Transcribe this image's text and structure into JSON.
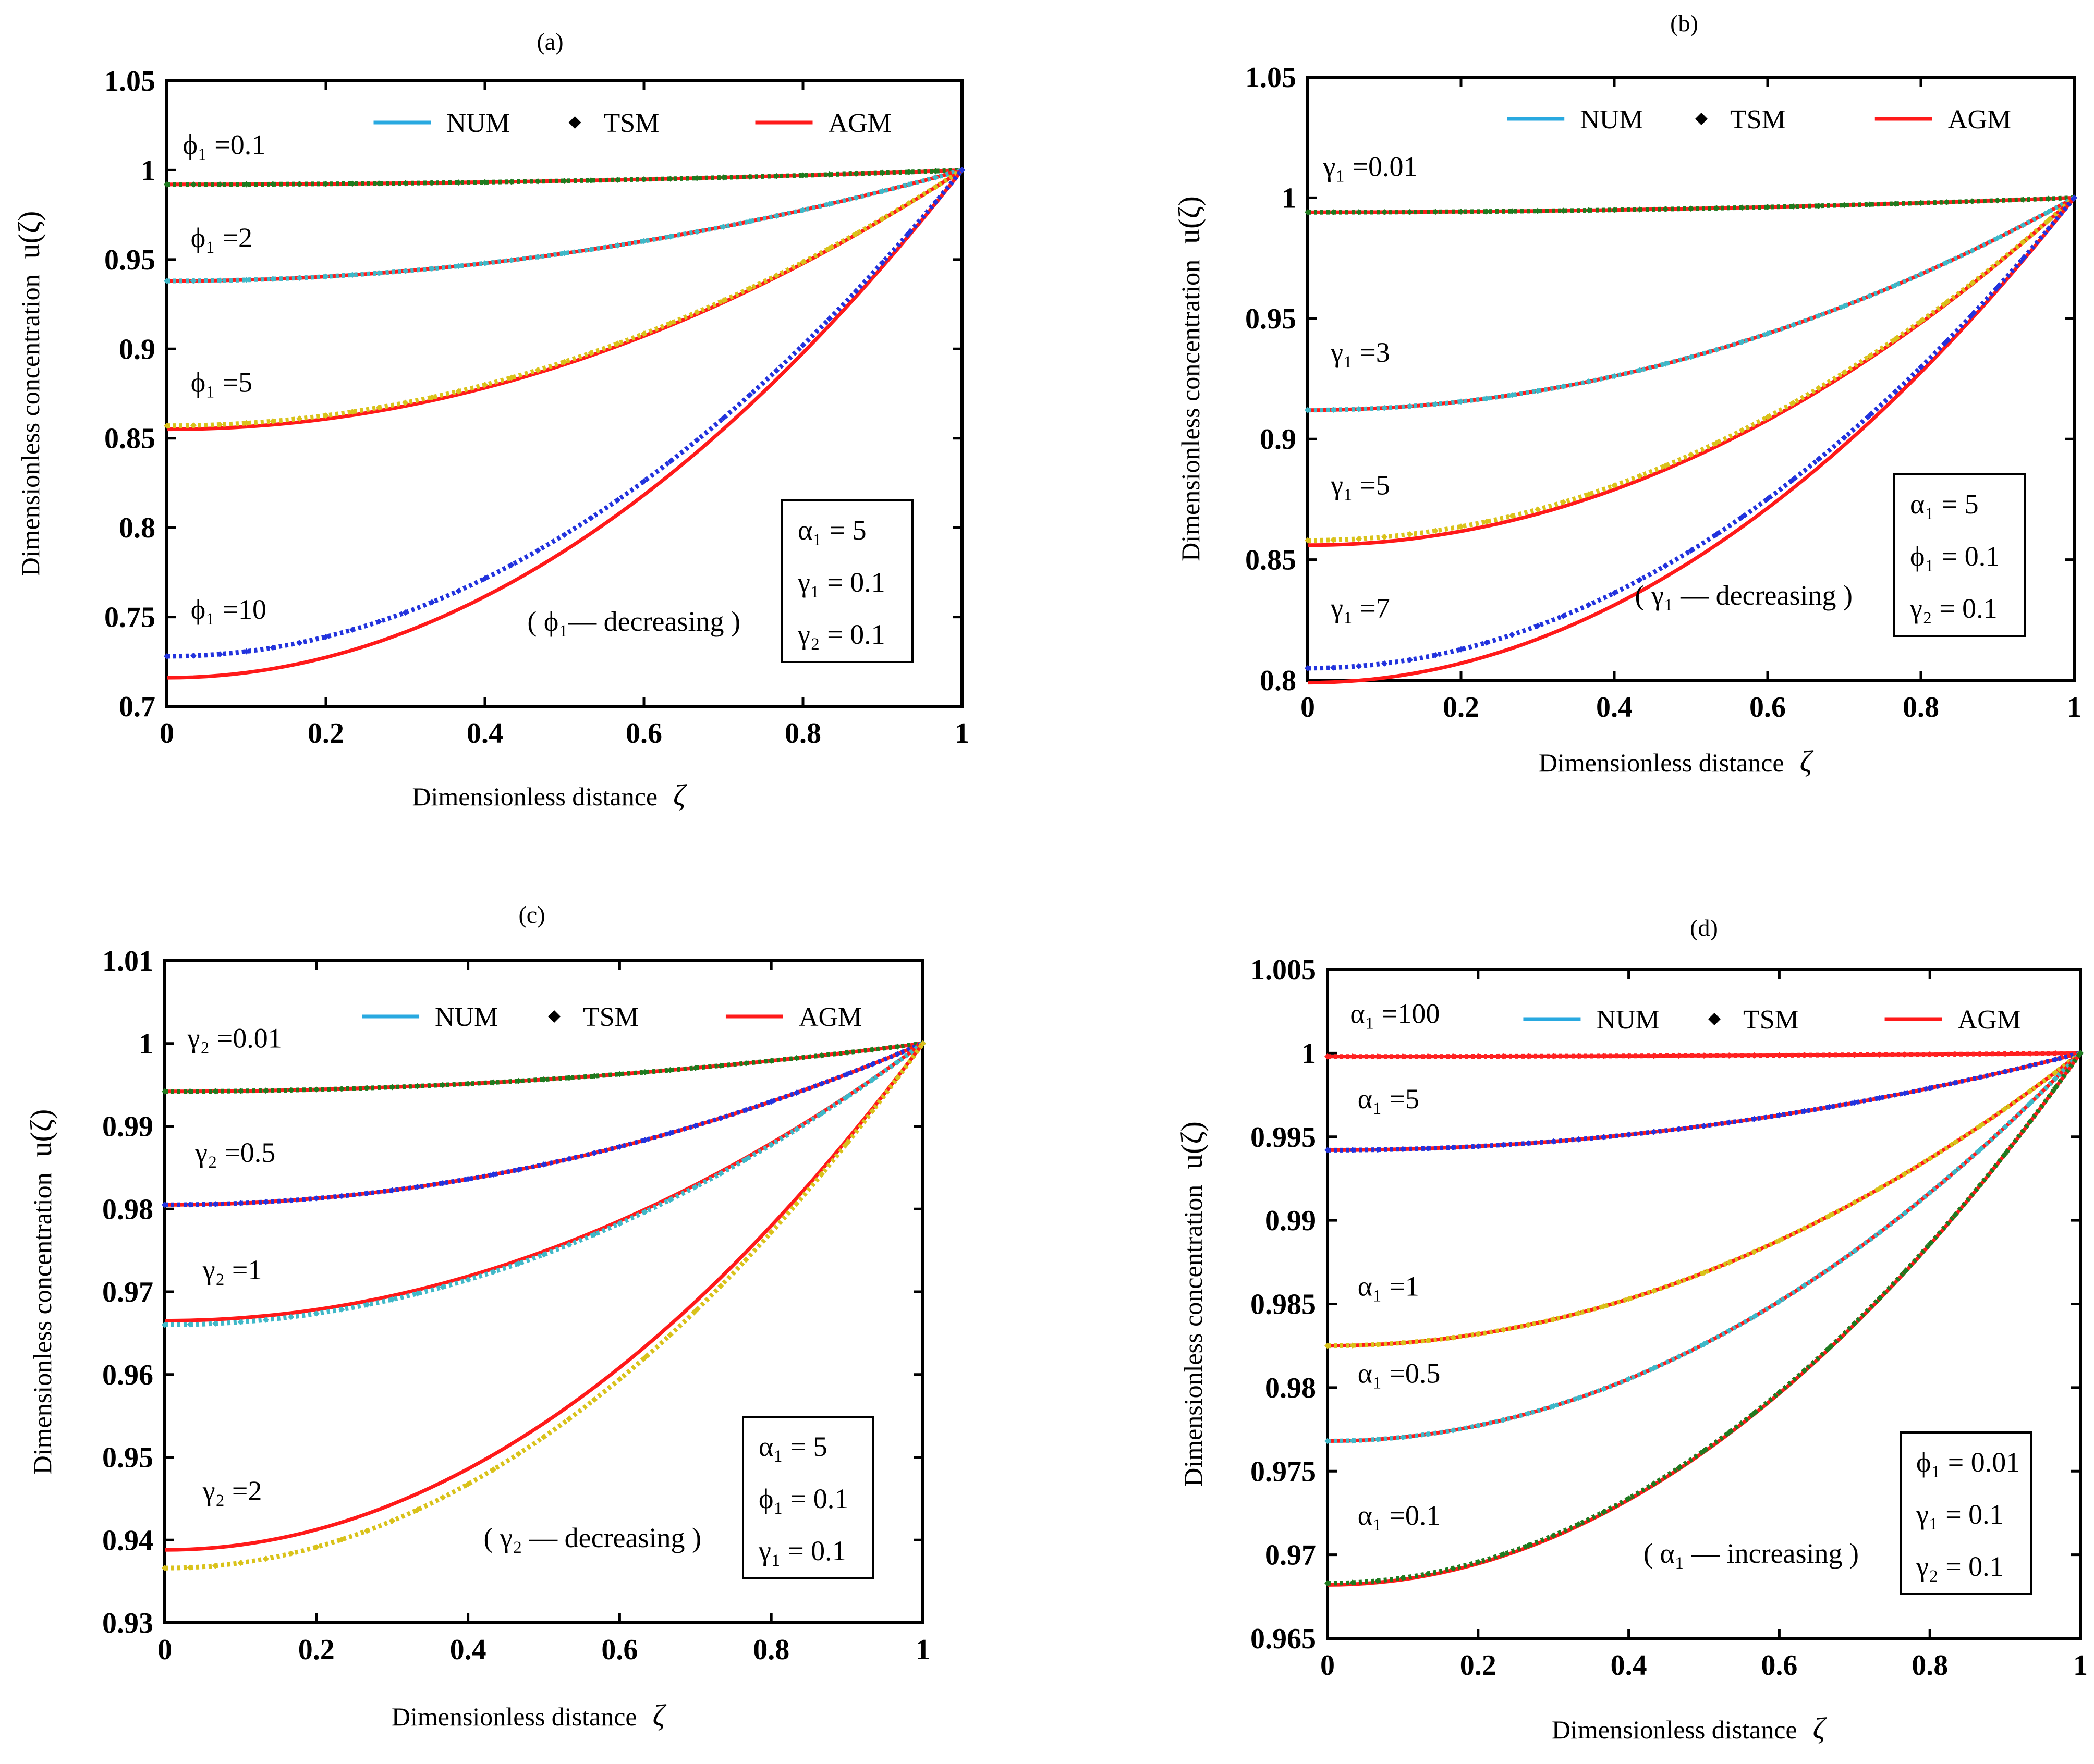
{
  "chart_data": [
    {
      "type": "line",
      "panel_label": "(a)",
      "xlabel": "Dimensionless distance",
      "xlabel_symbol": "ζ",
      "ylabel": "Dimensionless concentration",
      "ylabel_symbol": "u(ζ)",
      "xlim": [
        0,
        1
      ],
      "ylim": [
        0.7,
        1.05
      ],
      "xticks": [
        "0",
        "0.2",
        "0.4",
        "0.6",
        "0.8",
        "1"
      ],
      "yticks": [
        "0.7",
        "0.75",
        "0.8",
        "0.85",
        "0.9",
        "0.95",
        "1",
        "1.05"
      ],
      "legend": {
        "position": "top",
        "entries": [
          "NUM",
          "TSM",
          "AGM"
        ]
      },
      "params": [
        "α₁ = 5",
        "γ₁ = 0.1",
        "γ₂ = 0.1"
      ],
      "trend_note": "( ϕ₁— decreasing )",
      "series": [
        {
          "name": "ϕ₁ = 0.1",
          "label": "ϕ₁ =0.1",
          "u0_num": 0.992,
          "u0_agm": 0.992,
          "num_color": "#1f7a1f",
          "label_x": 0.02,
          "label_y": 1.009
        },
        {
          "name": "ϕ₁ = 2",
          "label": "ϕ₁ =2",
          "u0_num": 0.938,
          "u0_agm": 0.938,
          "num_color": "#3fb8c8",
          "label_x": 0.03,
          "label_y": 0.957
        },
        {
          "name": "ϕ₁ = 5",
          "label": "ϕ₁ =5",
          "u0_num": 0.857,
          "u0_agm": 0.855,
          "num_color": "#d9c21a",
          "label_x": 0.03,
          "label_y": 0.876
        },
        {
          "name": "ϕ₁ = 10",
          "label": "ϕ₁ =10",
          "u0_num": 0.728,
          "u0_agm": 0.716,
          "num_color": "#2233dd",
          "label_x": 0.03,
          "label_y": 0.749
        }
      ]
    },
    {
      "type": "line",
      "panel_label": "(b)",
      "xlabel": "Dimensionless distance",
      "xlabel_symbol": "ζ",
      "ylabel": "Dimensionless concentration",
      "ylabel_symbol": "u(ζ)",
      "xlim": [
        0,
        1
      ],
      "ylim": [
        0.8,
        1.05
      ],
      "xticks": [
        "0",
        "0.2",
        "0.4",
        "0.6",
        "0.8",
        "1"
      ],
      "yticks": [
        "0.8",
        "0.85",
        "0.9",
        "0.95",
        "1",
        "1.05"
      ],
      "legend": {
        "position": "top",
        "entries": [
          "NUM",
          "TSM",
          "AGM"
        ]
      },
      "params": [
        "α₁ = 5",
        "ϕ₁ = 0.1",
        "γ₂ = 0.1"
      ],
      "trend_note": "( γ₁ — decreasing )",
      "series": [
        {
          "name": "γ₁ = 0.01",
          "label": "γ₁ =0.01",
          "u0_num": 0.994,
          "u0_agm": 0.994,
          "num_color": "#1f7a1f",
          "label_x": 0.02,
          "label_y": 1.009
        },
        {
          "name": "γ₁ = 3",
          "label": "γ₁ =3",
          "u0_num": 0.912,
          "u0_agm": 0.912,
          "num_color": "#3fb8c8",
          "label_x": 0.03,
          "label_y": 0.932
        },
        {
          "name": "γ₁ = 5",
          "label": "γ₁ =5",
          "u0_num": 0.858,
          "u0_agm": 0.856,
          "num_color": "#d9c21a",
          "label_x": 0.03,
          "label_y": 0.877
        },
        {
          "name": "γ₁ = 7",
          "label": "γ₁ =7",
          "u0_num": 0.805,
          "u0_agm": 0.799,
          "num_color": "#2233dd",
          "label_x": 0.03,
          "label_y": 0.826
        }
      ]
    },
    {
      "type": "line",
      "panel_label": "(c)",
      "xlabel": "Dimensionless distance",
      "xlabel_symbol": "ζ",
      "ylabel": "Dimensionless concentration",
      "ylabel_symbol": "u(ζ)",
      "xlim": [
        0,
        1
      ],
      "ylim": [
        0.93,
        1.01
      ],
      "xticks": [
        "0",
        "0.2",
        "0.4",
        "0.6",
        "0.8",
        "1"
      ],
      "yticks": [
        "0.93",
        "0.94",
        "0.95",
        "0.96",
        "0.97",
        "0.98",
        "0.99",
        "1",
        "1.01"
      ],
      "legend": {
        "position": "top",
        "entries": [
          "NUM",
          "TSM",
          "AGM"
        ]
      },
      "params": [
        "α₁ = 5",
        "ϕ₁ = 0.1",
        "γ₁ = 0.1"
      ],
      "trend_note": "( γ₂ — decreasing )",
      "series": [
        {
          "name": "γ₂ = 0.01",
          "label": "γ₂ =0.01",
          "u0_num": 0.9942,
          "u0_agm": 0.9942,
          "num_color": "#1f7a1f",
          "label_x": 0.03,
          "label_y": 0.9995
        },
        {
          "name": "γ₂ = 0.5",
          "label": "γ₂ =0.5",
          "u0_num": 0.9805,
          "u0_agm": 0.9805,
          "num_color": "#2233dd",
          "label_x": 0.04,
          "label_y": 0.9857
        },
        {
          "name": "γ₂ = 1",
          "label": "γ₂ =1",
          "u0_num": 0.966,
          "u0_agm": 0.9665,
          "num_color": "#3fb8c8",
          "label_x": 0.05,
          "label_y": 0.9715
        },
        {
          "name": "γ₂ = 2",
          "label": "γ₂ =2",
          "u0_num": 0.9366,
          "u0_agm": 0.9388,
          "num_color": "#d9c21a",
          "label_x": 0.05,
          "label_y": 0.9448
        }
      ]
    },
    {
      "type": "line",
      "panel_label": "(d)",
      "xlabel": "Dimensionless distance",
      "xlabel_symbol": "ζ",
      "ylabel": "Dimensionless concentration",
      "ylabel_symbol": "u(ζ)",
      "xlim": [
        0,
        1
      ],
      "ylim": [
        0.965,
        1.005
      ],
      "xticks": [
        "0",
        "0.2",
        "0.4",
        "0.6",
        "0.8",
        "1"
      ],
      "yticks": [
        "0.965",
        "0.97",
        "0.975",
        "0.98",
        "0.985",
        "0.99",
        "0.995",
        "1",
        "1.005"
      ],
      "legend": {
        "position": "top",
        "entries": [
          "NUM",
          "TSM",
          "AGM"
        ]
      },
      "params": [
        "ϕ₁ = 0.01",
        "γ₁ = 0.1",
        "γ₂ = 0.1"
      ],
      "trend_note": "( α₁ — increasing )",
      "series": [
        {
          "name": "α₁ = 100",
          "label": "α₁ =100",
          "u0_num": 0.9998,
          "u0_agm": 0.9998,
          "num_color": "#ff2222",
          "label_x": 0.03,
          "label_y": 1.0018
        },
        {
          "name": "α₁ = 5",
          "label": "α₁ =5",
          "u0_num": 0.9942,
          "u0_agm": 0.9942,
          "num_color": "#2233dd",
          "label_x": 0.04,
          "label_y": 0.9967
        },
        {
          "name": "α₁ = 1",
          "label": "α₁ =1",
          "u0_num": 0.9825,
          "u0_agm": 0.9825,
          "num_color": "#d9c21a",
          "label_x": 0.04,
          "label_y": 0.9855
        },
        {
          "name": "α₁ = 0.5",
          "label": "α₁ =0.5",
          "u0_num": 0.9768,
          "u0_agm": 0.9768,
          "num_color": "#3fb8c8",
          "label_x": 0.04,
          "label_y": 0.9803
        },
        {
          "name": "α₁ = 0.1",
          "label": "α₁ =0.1",
          "u0_num": 0.9683,
          "u0_agm": 0.9682,
          "num_color": "#1f7a1f",
          "label_x": 0.04,
          "label_y": 0.9718
        }
      ]
    }
  ],
  "colors": {
    "num_legend": "#29a9e0",
    "tsm_legend": "#000000",
    "agm": "#ff1a1a",
    "axis": "#000000"
  }
}
